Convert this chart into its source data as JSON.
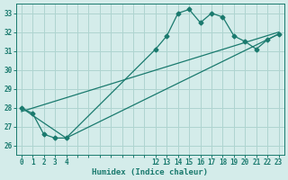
{
  "xlabel": "Humidex (Indice chaleur)",
  "bg_color": "#d4ecea",
  "grid_color": "#aed4d0",
  "line_color": "#1a7a6e",
  "ylim": [
    25.5,
    33.5
  ],
  "yticks": [
    26,
    27,
    28,
    29,
    30,
    31,
    32,
    33
  ],
  "xtick_labels": [
    "0",
    "1",
    "2",
    "3",
    "4",
    "",
    "",
    "",
    "",
    "",
    "",
    "",
    "12",
    "13",
    "14",
    "15",
    "16",
    "17",
    "18",
    "19",
    "20",
    "21",
    "22",
    "23"
  ],
  "xtick_positions": [
    0,
    1,
    2,
    3,
    4,
    5,
    6,
    7,
    8,
    9,
    10,
    11,
    12,
    13,
    14,
    15,
    16,
    17,
    18,
    19,
    20,
    21,
    22,
    23
  ],
  "xlim": [
    -0.5,
    23.5
  ],
  "line1_x": [
    0,
    1,
    2,
    3,
    4,
    12,
    13,
    14,
    15,
    16,
    17,
    18,
    19,
    20,
    21,
    22,
    23
  ],
  "line1_y": [
    28.0,
    27.7,
    26.6,
    26.4,
    26.4,
    31.1,
    31.8,
    33.0,
    33.2,
    32.5,
    33.0,
    32.8,
    31.8,
    31.5,
    31.1,
    31.6,
    31.9
  ],
  "line2_x": [
    0,
    4,
    23
  ],
  "line2_y": [
    28.0,
    26.4,
    31.9
  ],
  "line3_x": [
    0,
    23
  ],
  "line3_y": [
    27.8,
    32.0
  ],
  "marker_size": 2.5,
  "line_width": 0.9
}
